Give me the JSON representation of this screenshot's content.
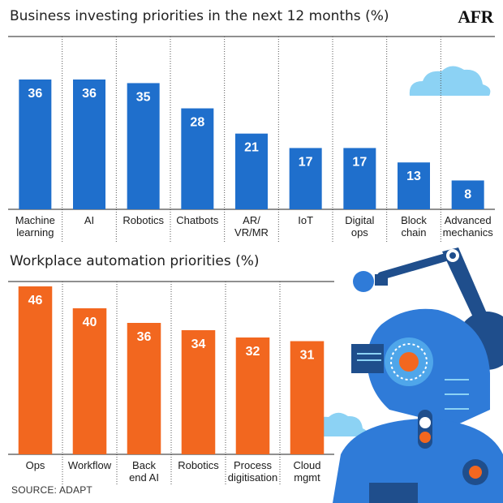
{
  "brand": {
    "logo_text": "AFR"
  },
  "source_text": "SOURCE: ADAPT",
  "colors": {
    "bar_blue": "#1f6fcc",
    "bar_orange": "#f2671f",
    "cloud": "#8cd2f4",
    "robot_dark": "#1f4e8c",
    "robot_mid": "#2f7bd8",
    "robot_light": "#4fa6ea",
    "robot_accent": "#f2671f"
  },
  "chart_data": [
    {
      "type": "bar",
      "title": "Business investing priorities in the next 12 months (%)",
      "categories": [
        [
          "Machine",
          "learning"
        ],
        [
          "AI"
        ],
        [
          "Robotics"
        ],
        [
          "Chatbots"
        ],
        [
          "AR/",
          "VR/MR"
        ],
        [
          "IoT"
        ],
        [
          "Digital",
          "ops"
        ],
        [
          "Block",
          "chain"
        ],
        [
          "Advanced",
          "mechanics"
        ]
      ],
      "values": [
        36,
        36,
        35,
        28,
        21,
        17,
        17,
        13,
        8
      ],
      "ylim": [
        0,
        36
      ],
      "data_labels": true,
      "grid": false,
      "color": "#1f6fcc"
    },
    {
      "type": "bar",
      "title": "Workplace automation priorities (%)",
      "categories": [
        [
          "Ops"
        ],
        [
          "Workflow"
        ],
        [
          "Back",
          "end AI"
        ],
        [
          "Robotics"
        ],
        [
          "Process",
          "digitisation"
        ],
        [
          "Cloud",
          "mgmt"
        ]
      ],
      "values": [
        46,
        40,
        36,
        34,
        32,
        31
      ],
      "ylim": [
        0,
        46
      ],
      "data_labels": true,
      "grid": false,
      "color": "#f2671f"
    }
  ]
}
